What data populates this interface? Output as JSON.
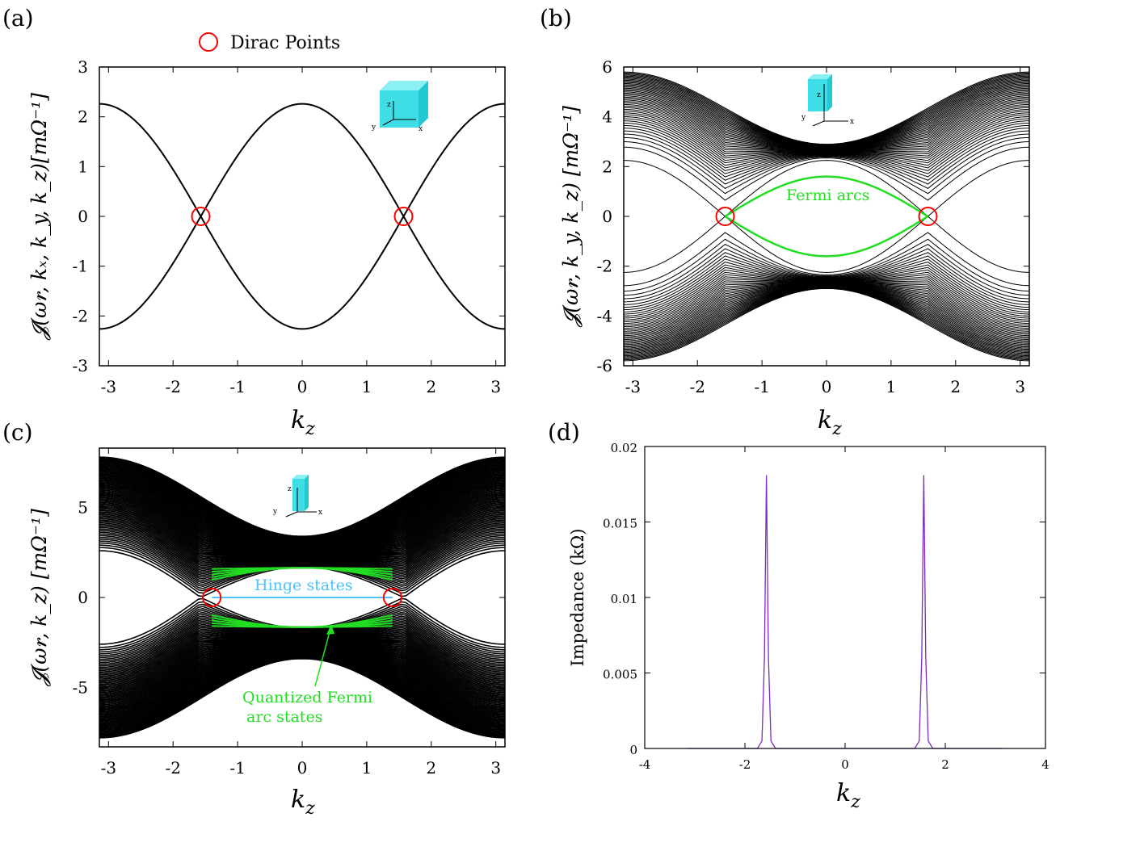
{
  "figure": {
    "panel_labels": [
      "(a)",
      "(b)",
      "(c)",
      "(d)"
    ]
  },
  "colors": {
    "bands": "#000000",
    "dirac_circle": "#ff0000",
    "fermi_arcs": "#22dd22",
    "hinge": "#4fc3f7",
    "impedance": "#7b2cbf",
    "cube": "#3fdde6"
  },
  "icons": [
    "cube-geometry-icon",
    "slab-geometry-icon",
    "rod-geometry-icon"
  ],
  "chart_data": [
    {
      "panel": "(a)",
      "type": "line",
      "xlabel": "k_z",
      "ylabel": "𝓙(ω𝒓, kₓ, k_y, k_z)[mΩ⁻¹]",
      "xlim": [
        -3.1416,
        3.1416
      ],
      "ylim": [
        -3,
        3
      ],
      "xticks": [
        "-3",
        "-2",
        "-1",
        "0",
        "1",
        "2",
        "3"
      ],
      "yticks": [
        "3",
        "2",
        "1",
        "0",
        "-1",
        "-2",
        "-3"
      ],
      "legend": "Dirac Points",
      "legend_position": "top-center",
      "series": [
        {
          "x": [
            -3.1416,
            -2.3562,
            -1.5708,
            -0.7854,
            0,
            0.7854,
            1.5708,
            2.3562,
            3.1416
          ],
          "y": [
            2.26,
            1.6,
            0,
            -1.6,
            -2.26,
            -1.6,
            0,
            1.6,
            2.26
          ]
        },
        {
          "x": [
            -3.1416,
            -2.3562,
            -1.5708,
            -0.7854,
            0,
            0.7854,
            1.5708,
            2.3562,
            3.1416
          ],
          "y": [
            -2.26,
            -1.6,
            0,
            1.6,
            2.26,
            1.6,
            0,
            -1.6,
            -2.26
          ]
        }
      ],
      "dirac_points": [
        [
          -1.5708,
          0
        ],
        [
          1.5708,
          0
        ]
      ]
    },
    {
      "panel": "(b)",
      "type": "line",
      "xlabel": "k_z",
      "ylabel": "𝓙(ω𝒓, k_y, k_z) [mΩ⁻¹]",
      "xlim": [
        -3.1416,
        3.1416
      ],
      "ylim": [
        -6,
        6
      ],
      "xticks": [
        "-3",
        "-2",
        "-1",
        "0",
        "1",
        "2",
        "3"
      ],
      "yticks": [
        "6",
        "4",
        "2",
        "0",
        "-2",
        "-4",
        "-6"
      ],
      "annotation": "Fermi arcs",
      "bulk_band_outer_edge": {
        "at_kz_0": 2.9,
        "at_kz_pi": 5.8
      },
      "bulk_band_inner_edge": {
        "at_kz_0": 2.25,
        "at_kz_pi": 2.25
      },
      "fermi_arcs_peak": 1.6,
      "dirac_points": [
        [
          -1.5708,
          0
        ],
        [
          1.5708,
          0
        ]
      ]
    },
    {
      "panel": "(c)",
      "type": "line",
      "xlabel": "k_z",
      "ylabel": "𝓙(ω𝒓, k_z) [mΩ⁻¹]",
      "xlim": [
        -3.1416,
        3.1416
      ],
      "ylim": [
        -8.3,
        8.3
      ],
      "xticks": [
        "-3",
        "-2",
        "-1",
        "0",
        "1",
        "2",
        "3"
      ],
      "yticks": [
        "5",
        "0",
        "-5"
      ],
      "annotations": [
        "Hinge states",
        "Quantized Fermi",
        "arc states"
      ],
      "bulk_band_outer_edge": {
        "at_kz_0": 3.4,
        "at_kz_pi": 7.8
      },
      "hinge_states": {
        "x": [
          -1.4,
          1.4
        ],
        "y": 0
      },
      "dirac_points": [
        [
          -1.4,
          0
        ],
        [
          1.4,
          0
        ]
      ]
    },
    {
      "panel": "(d)",
      "type": "line",
      "xlabel": "k_z",
      "ylabel": "Impedance (kΩ)",
      "xlim": [
        -4,
        4
      ],
      "ylim": [
        0,
        0.02
      ],
      "xticks": [
        "-4",
        "-2",
        "0",
        "2",
        "4"
      ],
      "yticks": [
        "0.02",
        "0.015",
        "0.01",
        "0.005",
        "0"
      ],
      "series": [
        {
          "x": [
            -3.14,
            -1.75,
            -1.66,
            -1.61,
            -1.5708,
            -1.53,
            -1.48,
            -1.39,
            1.39,
            1.48,
            1.53,
            1.5708,
            1.61,
            1.66,
            1.75,
            3.14
          ],
          "y": [
            0,
            0,
            0.0005,
            0.006,
            0.0181,
            0.006,
            0.0005,
            0,
            0,
            0.0005,
            0.006,
            0.0181,
            0.006,
            0.0005,
            0,
            0
          ]
        }
      ]
    }
  ]
}
